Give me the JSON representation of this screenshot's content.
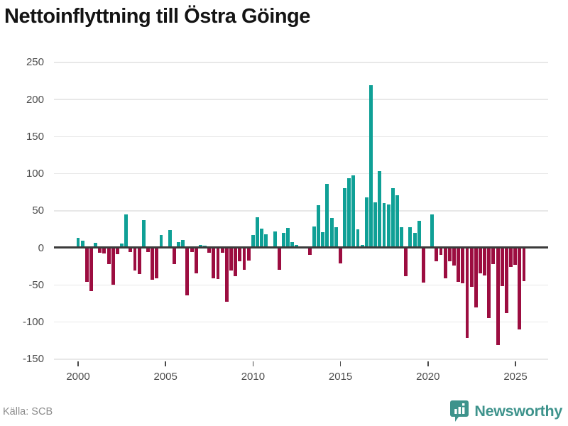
{
  "title": "Nettoinflyttning till Östra Göinge",
  "source": "Källa: SCB",
  "branding": {
    "name": "Newsworthy",
    "brand_color": "#3E938C"
  },
  "colors": {
    "positive_bar": "#0FA096",
    "negative_bar": "#9C0D40",
    "zero_axis": "#3B3B3B",
    "gridline": "#E8E8E8",
    "tick_label": "#4D4D4D",
    "source_text": "#8C8C8C"
  },
  "chart_data": {
    "type": "bar",
    "title": "Nettoinflyttning till Östra Göinge",
    "xlabel": "",
    "ylabel": "",
    "ylim": [
      -150,
      250
    ],
    "grid": true,
    "legend": "none",
    "y_tick_labels": [
      "250",
      "200",
      "150",
      "100",
      "50",
      "0",
      "-50",
      "-100",
      "-150"
    ],
    "y_tick_values": [
      250,
      200,
      150,
      100,
      50,
      0,
      -50,
      -100,
      -150
    ],
    "x_tick_labels": [
      "2000",
      "2005",
      "2010",
      "2015",
      "2020",
      "2025"
    ],
    "frequency": "quarterly",
    "start_quarter": "2000Q1",
    "end_quarter": "2025Q3",
    "series": [
      {
        "name": "Nettoinflyttning",
        "values": [
          13,
          10,
          -46,
          -58,
          7,
          -7,
          -8,
          -22,
          -50,
          -9,
          6,
          45,
          -6,
          -31,
          -35,
          37,
          -6,
          -43,
          -41,
          17,
          2,
          24,
          -22,
          8,
          11,
          -64,
          -6,
          -34,
          4,
          3,
          -7,
          -41,
          -42,
          -7,
          -73,
          -31,
          -38,
          -18,
          -30,
          -17,
          17,
          41,
          26,
          18,
          0,
          22,
          -30,
          20,
          27,
          8,
          4,
          0,
          2,
          -10,
          29,
          57,
          21,
          86,
          40,
          28,
          -21,
          80,
          94,
          98,
          25,
          4,
          68,
          219,
          61,
          103,
          60,
          58,
          80,
          71,
          28,
          -38,
          28,
          20,
          36,
          -47,
          0,
          45,
          -18,
          -10,
          -41,
          -18,
          -24,
          -46,
          -48,
          -122,
          -53,
          -80,
          -34,
          -37,
          -95,
          -22,
          -131,
          -52,
          -88,
          -26,
          -23,
          -110,
          -45
        ]
      }
    ]
  }
}
